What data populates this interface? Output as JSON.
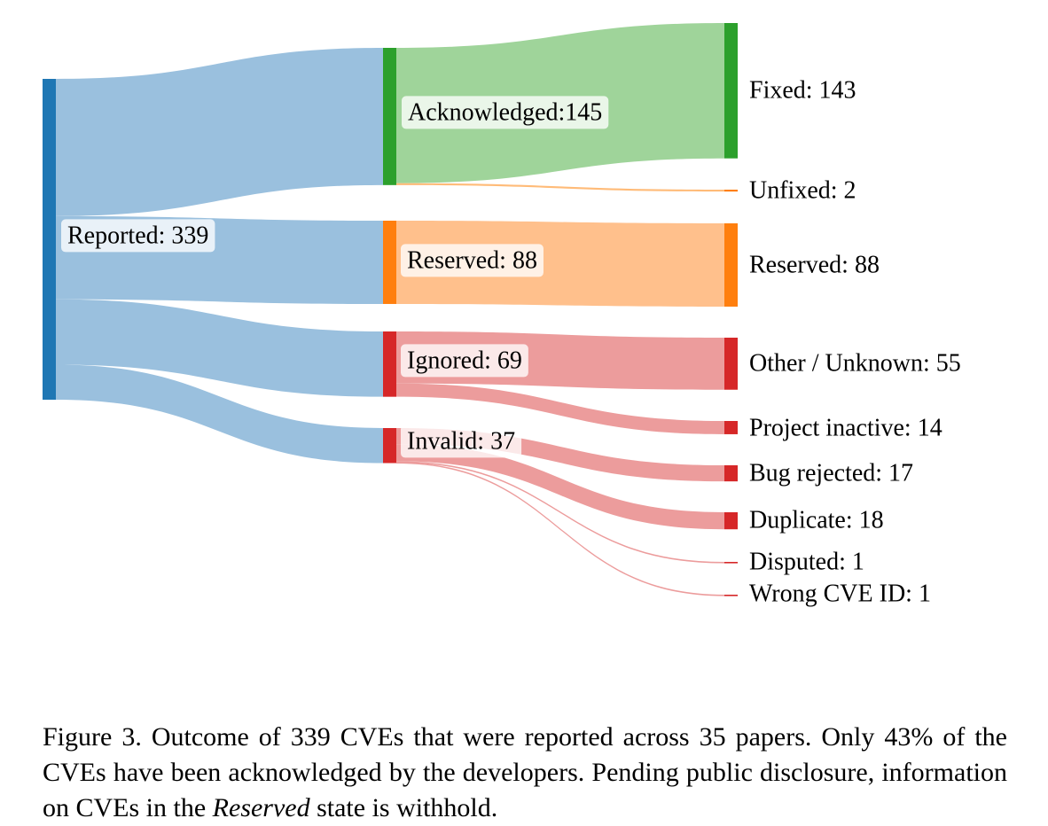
{
  "chart_data": {
    "type": "sankey",
    "nodes": [
      {
        "id": "reported",
        "label": "Reported: 339",
        "value": 339,
        "color": "#1f77b4"
      },
      {
        "id": "acknowledged",
        "label": "Acknowledged:145",
        "value": 145,
        "color": "#2ca02c"
      },
      {
        "id": "reserved_mid",
        "label": "Reserved: 88",
        "value": 88,
        "color": "#ff7f0e"
      },
      {
        "id": "ignored",
        "label": "Ignored: 69",
        "value": 69,
        "color": "#d62728"
      },
      {
        "id": "invalid",
        "label": "Invalid: 37",
        "value": 37,
        "color": "#d62728"
      },
      {
        "id": "fixed",
        "label": "Fixed: 143",
        "value": 143,
        "color": "#2ca02c"
      },
      {
        "id": "unfixed",
        "label": "Unfixed: 2",
        "value": 2,
        "color": "#ff7f0e"
      },
      {
        "id": "reserved_out",
        "label": "Reserved: 88",
        "value": 88,
        "color": "#ff7f0e"
      },
      {
        "id": "other",
        "label": "Other / Unknown: 55",
        "value": 55,
        "color": "#d62728"
      },
      {
        "id": "inactive",
        "label": "Project inactive: 14",
        "value": 14,
        "color": "#d62728"
      },
      {
        "id": "rejected",
        "label": "Bug rejected: 17",
        "value": 17,
        "color": "#d62728"
      },
      {
        "id": "duplicate",
        "label": "Duplicate: 18",
        "value": 18,
        "color": "#d62728"
      },
      {
        "id": "disputed",
        "label": "Disputed: 1",
        "value": 1,
        "color": "#d62728"
      },
      {
        "id": "wrongid",
        "label": "Wrong CVE ID: 1",
        "value": 1,
        "color": "#d62728"
      }
    ],
    "links": [
      {
        "source": "reported",
        "target": "acknowledged",
        "value": 145
      },
      {
        "source": "reported",
        "target": "reserved_mid",
        "value": 88
      },
      {
        "source": "reported",
        "target": "ignored",
        "value": 69
      },
      {
        "source": "reported",
        "target": "invalid",
        "value": 37
      },
      {
        "source": "acknowledged",
        "target": "fixed",
        "value": 143
      },
      {
        "source": "acknowledged",
        "target": "unfixed",
        "value": 2
      },
      {
        "source": "reserved_mid",
        "target": "reserved_out",
        "value": 88
      },
      {
        "source": "ignored",
        "target": "other",
        "value": 55
      },
      {
        "source": "ignored",
        "target": "inactive",
        "value": 14
      },
      {
        "source": "invalid",
        "target": "rejected",
        "value": 17
      },
      {
        "source": "invalid",
        "target": "duplicate",
        "value": 18
      },
      {
        "source": "invalid",
        "target": "disputed",
        "value": 1
      },
      {
        "source": "invalid",
        "target": "wrongid",
        "value": 1
      }
    ],
    "link_colors": {
      "reported": "#9ac0de",
      "acknowledged_fixed": "#9fd49a",
      "acknowledged_unfixed": "#ffbb78",
      "reserved_mid": "#ffc08c",
      "red": "#ec9c9c"
    }
  },
  "caption": {
    "prefix": "Figure 3. Outcome of 339 CVEs that were reported across 35 papers. Only 43% of the CVEs have been acknowledged by the developers. Pending public disclosure, information on CVEs in the ",
    "emph": "Reserved",
    "suffix": " state is withhold."
  }
}
